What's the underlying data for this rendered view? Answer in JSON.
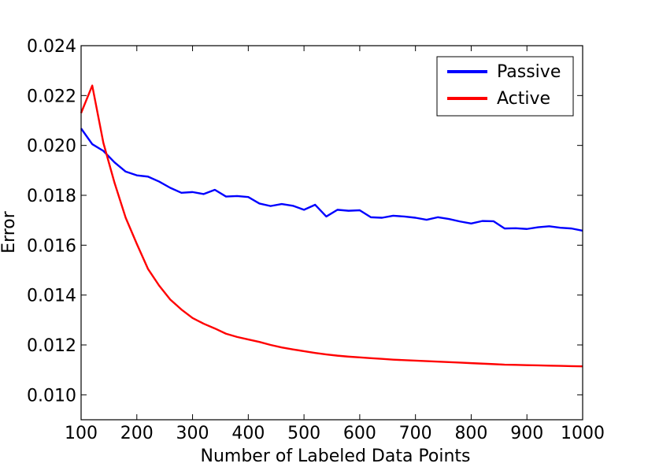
{
  "chart_data": {
    "type": "line",
    "title": "",
    "xlabel": "Number of Labeled Data Points",
    "ylabel": "Error",
    "xlim": [
      100,
      1000
    ],
    "ylim": [
      0.009,
      0.024
    ],
    "xticks": [
      100,
      200,
      300,
      400,
      500,
      600,
      700,
      800,
      900,
      1000
    ],
    "xtick_labels": [
      "100",
      "200",
      "300",
      "400",
      "500",
      "600",
      "700",
      "800",
      "900",
      "1000"
    ],
    "yticks": [
      0.01,
      0.012,
      0.014,
      0.016,
      0.018,
      0.02,
      0.022,
      0.024
    ],
    "ytick_labels": [
      "0.010",
      "0.012",
      "0.014",
      "0.016",
      "0.018",
      "0.020",
      "0.022",
      "0.024"
    ],
    "grid": false,
    "legend_position": "top-right",
    "series": [
      {
        "name": "Passive",
        "color": "#0000ff",
        "x": [
          100,
          120,
          140,
          160,
          180,
          200,
          220,
          240,
          260,
          280,
          300,
          320,
          340,
          360,
          380,
          400,
          420,
          440,
          460,
          480,
          500,
          520,
          540,
          560,
          580,
          600,
          620,
          640,
          660,
          680,
          700,
          720,
          740,
          760,
          780,
          800,
          820,
          840,
          860,
          880,
          900,
          920,
          940,
          960,
          980,
          1000
        ],
        "values": [
          0.02068,
          0.02005,
          0.01978,
          0.01932,
          0.01895,
          0.0188,
          0.01875,
          0.01855,
          0.0183,
          0.0181,
          0.01813,
          0.01805,
          0.01822,
          0.01795,
          0.01797,
          0.01793,
          0.01767,
          0.01757,
          0.01765,
          0.01758,
          0.01742,
          0.01762,
          0.01715,
          0.01742,
          0.01738,
          0.0174,
          0.01712,
          0.0171,
          0.01718,
          0.01715,
          0.0171,
          0.01702,
          0.01712,
          0.01705,
          0.01695,
          0.01687,
          0.01697,
          0.01696,
          0.01667,
          0.01668,
          0.01665,
          0.01672,
          0.01676,
          0.0167,
          0.01667,
          0.01658
        ]
      },
      {
        "name": "Active",
        "color": "#ff0000",
        "x": [
          100,
          120,
          140,
          160,
          180,
          200,
          220,
          240,
          260,
          280,
          300,
          320,
          340,
          360,
          380,
          400,
          420,
          440,
          460,
          480,
          500,
          520,
          540,
          560,
          580,
          600,
          620,
          640,
          660,
          680,
          700,
          720,
          740,
          760,
          780,
          800,
          820,
          840,
          860,
          880,
          900,
          920,
          940,
          960,
          980,
          1000
        ],
        "values": [
          0.0213,
          0.0224,
          0.0201,
          0.0185,
          0.0171,
          0.01605,
          0.01505,
          0.01438,
          0.01382,
          0.01342,
          0.01308,
          0.01285,
          0.01266,
          0.01245,
          0.01232,
          0.01222,
          0.01212,
          0.012,
          0.0119,
          0.01182,
          0.01175,
          0.01168,
          0.01162,
          0.01157,
          0.01153,
          0.0115,
          0.01147,
          0.01144,
          0.01141,
          0.01139,
          0.01137,
          0.01135,
          0.01133,
          0.01131,
          0.01129,
          0.01127,
          0.01125,
          0.01123,
          0.01121,
          0.0112,
          0.01119,
          0.01118,
          0.01117,
          0.01116,
          0.01115,
          0.01114
        ]
      }
    ]
  }
}
